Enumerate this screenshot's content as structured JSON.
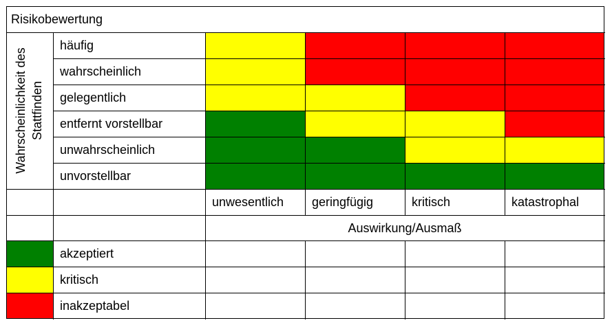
{
  "title": "Risikobewertung",
  "y_axis_label": [
    "Wahrscheinlichkeit des",
    "Stattfinden"
  ],
  "x_axis_label": "Auswirkung/Ausmaß",
  "likelihood_levels": [
    "häufig",
    "wahrscheinlich",
    "gelegentlich",
    "entfernt vorstellbar",
    "unwahrscheinlich",
    "unvorstellbar"
  ],
  "impact_levels": [
    "unwesentlich",
    "geringfügig",
    "kritisch",
    "katastrophal"
  ],
  "matrix_ratings": [
    [
      "kritisch",
      "inakzeptabel",
      "inakzeptabel",
      "inakzeptabel"
    ],
    [
      "kritisch",
      "inakzeptabel",
      "inakzeptabel",
      "inakzeptabel"
    ],
    [
      "kritisch",
      "kritisch",
      "inakzeptabel",
      "inakzeptabel"
    ],
    [
      "akzeptiert",
      "kritisch",
      "kritisch",
      "inakzeptabel"
    ],
    [
      "akzeptiert",
      "akzeptiert",
      "kritisch",
      "kritisch"
    ],
    [
      "akzeptiert",
      "akzeptiert",
      "akzeptiert",
      "akzeptiert"
    ]
  ],
  "legend": [
    {
      "label": "akzeptiert",
      "color": "#008000"
    },
    {
      "label": "kritisch",
      "color": "#ffff00"
    },
    {
      "label": "inakzeptabel",
      "color": "#ff0000"
    }
  ]
}
